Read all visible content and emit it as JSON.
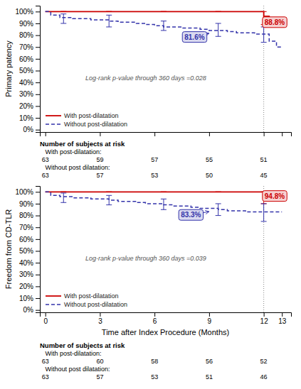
{
  "chart_data": [
    {
      "type": "step",
      "ylabel": "Primary patency",
      "xlim": [
        -0.3,
        13.5
      ],
      "ylim": [
        -2,
        105
      ],
      "xticks": [
        0,
        3,
        6,
        9,
        12,
        13
      ],
      "yticks": [
        {
          "value": 0,
          "label": "0%"
        },
        {
          "value": 10,
          "label": "10%"
        },
        {
          "value": 20,
          "label": "20%"
        },
        {
          "value": 30,
          "label": "30%"
        },
        {
          "value": 40,
          "label": "40%"
        },
        {
          "value": 50,
          "label": "50%"
        },
        {
          "value": 60,
          "label": "60%"
        },
        {
          "value": 70,
          "label": "70%"
        },
        {
          "value": 80,
          "label": "80%"
        },
        {
          "value": 90,
          "label": "90%"
        },
        {
          "value": 100,
          "label": "100%"
        }
      ],
      "tick_labels": "y",
      "legend": "lower left",
      "series": [
        {
          "name": "With post-dilatation",
          "color": "#cc0000",
          "line_style": "solid",
          "x": [
            0,
            0.5,
            1.0,
            2.0,
            3.0,
            4.0,
            5.0,
            6.0,
            7.0,
            8.0,
            9.0,
            10.0,
            11.0,
            12.0,
            12.3,
            13.0
          ],
          "values": [
            100,
            100,
            100,
            100,
            100,
            100,
            100,
            100,
            100,
            100,
            100,
            100,
            100,
            96.0,
            88.8,
            88.8
          ],
          "ci_x": [
            1.0,
            3.5,
            6.5,
            9.5,
            12.0
          ],
          "ci_lower": [
            100,
            100,
            100,
            100,
            89
          ],
          "ci_upper": [
            100,
            100,
            100,
            100,
            100
          ]
        },
        {
          "name": "Without post-dilatation",
          "color": "#3333aa",
          "line_style": "dashed",
          "x": [
            0,
            0.3,
            0.8,
            1.5,
            2.0,
            2.5,
            3.0,
            3.5,
            4.0,
            4.5,
            5.0,
            5.5,
            6.0,
            6.5,
            7.0,
            7.5,
            8.0,
            8.5,
            9.0,
            9.5,
            10.0,
            10.5,
            11.0,
            11.5,
            12.0,
            12.3,
            12.7,
            13.0
          ],
          "values": [
            100,
            97,
            95,
            94,
            94,
            93,
            93,
            92,
            91,
            91,
            90,
            89,
            88,
            87,
            87,
            86,
            86,
            85,
            84,
            84,
            83,
            82,
            82,
            81,
            81,
            75,
            70,
            70
          ],
          "ci_x": [
            1.0,
            3.5,
            6.5,
            9.5,
            12.0
          ],
          "ci_lower": [
            90,
            87,
            84,
            79,
            74
          ],
          "ci_upper": [
            98,
            97,
            92,
            90,
            87
          ]
        }
      ],
      "vline": 12,
      "annotations": [
        {
          "text": "Log-rank p-value through 360 days =0.028",
          "x": 2.2,
          "y": 42
        },
        {
          "text": "88.8%",
          "x": 12.6,
          "y": 91.0,
          "arrow_x": 12.1,
          "arrow_y": 88.8,
          "color": "#cc0000"
        },
        {
          "text": "81.6%",
          "x": 8.2,
          "y": 78.5,
          "arrow_x": 9.0,
          "arrow_y": 81.6,
          "color": "#3333aa"
        }
      ],
      "risk_table": {
        "title": "Number of subjects at risk",
        "x": [
          0,
          3,
          6,
          9,
          12
        ],
        "rows": [
          {
            "label": "   With post-dilatation:",
            "values": [
              63,
              59,
              57,
              55,
              51
            ]
          },
          {
            "label": "   Without post dilatation:",
            "values": [
              63,
              57,
              53,
              50,
              45
            ]
          }
        ]
      }
    },
    {
      "type": "step",
      "ylabel": "Freedom from CD-TLR",
      "xlabel": "Time after Index Procedure (Months)",
      "xlim": [
        -0.3,
        13.5
      ],
      "ylim": [
        -2,
        105
      ],
      "xticks": [
        0,
        3,
        6,
        9,
        12,
        13
      ],
      "yticks": [
        {
          "value": 0,
          "label": "0%"
        },
        {
          "value": 10,
          "label": "10%"
        },
        {
          "value": 20,
          "label": "20%"
        },
        {
          "value": 30,
          "label": "30%"
        },
        {
          "value": 40,
          "label": "40%"
        },
        {
          "value": 50,
          "label": "50%"
        },
        {
          "value": 60,
          "label": "60%"
        },
        {
          "value": 70,
          "label": "70%"
        },
        {
          "value": 80,
          "label": "80%"
        },
        {
          "value": 90,
          "label": "90%"
        },
        {
          "value": 100,
          "label": "100%"
        }
      ],
      "legend": "lower left",
      "series": [
        {
          "name": "With post-dilatation",
          "color": "#cc0000",
          "line_style": "solid",
          "x": [
            0,
            0.5,
            1.0,
            2.0,
            3.0,
            4.0,
            5.0,
            6.0,
            7.0,
            8.0,
            9.0,
            10.0,
            11.0,
            12.0,
            12.3,
            13.0
          ],
          "values": [
            100,
            100,
            100,
            100,
            100,
            100,
            100,
            100,
            100,
            100,
            100,
            100,
            100,
            96.5,
            94.8,
            94.8
          ],
          "ci_x": [
            1.0,
            3.5,
            6.5,
            9.5,
            12.0
          ],
          "ci_lower": [
            100,
            100,
            100,
            100,
            90
          ],
          "ci_upper": [
            100,
            100,
            100,
            100,
            100
          ]
        },
        {
          "name": "Without post-dilatation",
          "color": "#3333aa",
          "line_style": "dashed",
          "x": [
            0,
            0.3,
            0.8,
            1.5,
            2.0,
            2.5,
            3.0,
            3.5,
            4.0,
            4.5,
            5.0,
            5.5,
            6.0,
            6.5,
            7.0,
            7.5,
            8.0,
            8.5,
            9.0,
            9.5,
            10.0,
            10.5,
            11.0,
            11.5,
            12.0,
            12.5,
            13.0
          ],
          "values": [
            100,
            97,
            96,
            95,
            95,
            94,
            94,
            93,
            92,
            92,
            91,
            90,
            90,
            89,
            88,
            88,
            87,
            86,
            86,
            85,
            84,
            84,
            83,
            83,
            83,
            83,
            83
          ],
          "ci_x": [
            1.0,
            3.5,
            6.5,
            9.5,
            12.0
          ],
          "ci_lower": [
            91,
            89,
            85,
            80,
            75
          ],
          "ci_upper": [
            99,
            97,
            94,
            90,
            90
          ]
        }
      ],
      "vline": 12,
      "annotations": [
        {
          "text": "Log-rank p-value through 360 days =0.039",
          "x": 2.2,
          "y": 42
        },
        {
          "text": "94.8%",
          "x": 12.6,
          "y": 96.5,
          "arrow_x": 12.1,
          "arrow_y": 94.8,
          "color": "#cc0000"
        },
        {
          "text": "83.3%",
          "x": 8.0,
          "y": 80.5,
          "arrow_x": 9.0,
          "arrow_y": 83.3,
          "color": "#3333aa"
        }
      ],
      "risk_table": {
        "title": "Number of subjects at risk",
        "x": [
          0,
          3,
          6,
          9,
          12
        ],
        "rows": [
          {
            "label": "   With post-dilatation:",
            "values": [
              63,
              60,
              58,
              56,
              52
            ]
          },
          {
            "label": "   Without post dilatation:",
            "values": [
              63,
              57,
              53,
              51,
              46
            ]
          }
        ]
      }
    }
  ]
}
